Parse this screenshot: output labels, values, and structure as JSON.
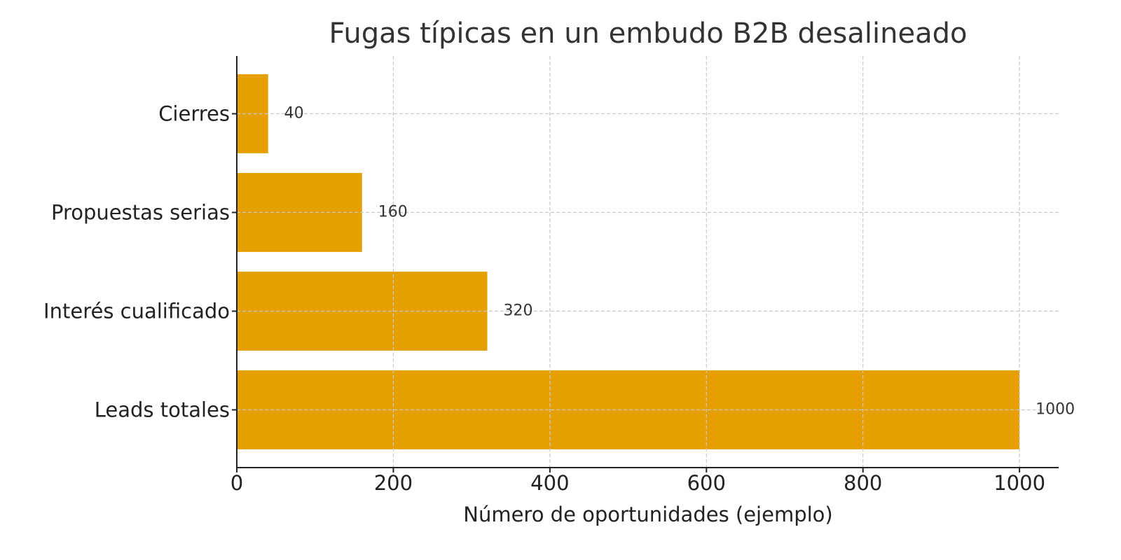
{
  "chart_data": {
    "type": "barh",
    "title": "Fugas típicas en un embudo B2B desalineado",
    "xlabel": "Número de oportunidades (ejemplo)",
    "categories": [
      "Leads totales",
      "Interés cualificado",
      "Propuestas serias",
      "Cierres"
    ],
    "values": [
      1000,
      320,
      160,
      40
    ],
    "color": "#e69f00",
    "xlim": [
      0,
      1050
    ],
    "xticks": [
      0,
      200,
      400,
      600,
      800,
      1000
    ],
    "grid": true
  }
}
